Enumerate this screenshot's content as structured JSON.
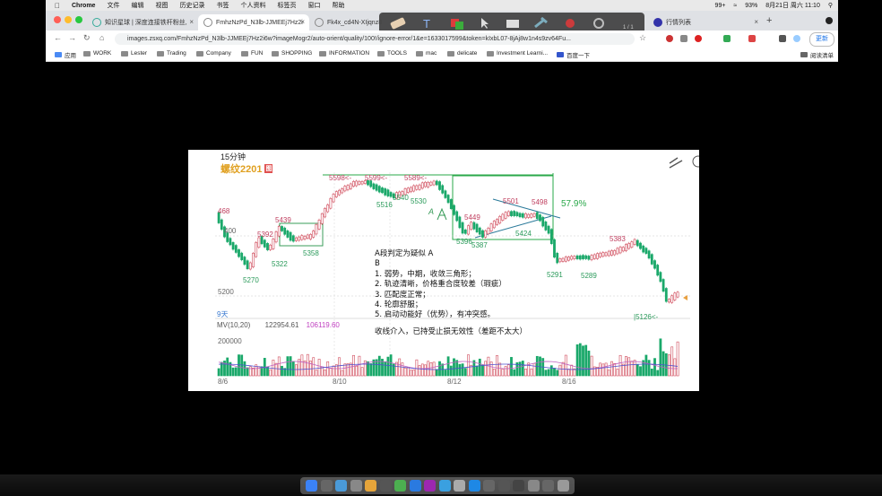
{
  "menubar": {
    "items": [
      "Chrome",
      "文件",
      "编辑",
      "视图",
      "历史记录",
      "书签",
      "个人资料",
      "标签页",
      "窗口",
      "帮助"
    ],
    "status": {
      "battery": "93%",
      "date": "8月21日 周六 11:10",
      "badge": "99+"
    }
  },
  "tabs": [
    {
      "title": "知识星球 | 深度连接铁杆粉丝,"
    },
    {
      "title": "FmhzNzPd_N3lb-JJMEEj7Hz2i"
    },
    {
      "title": "Fk4x_cd4N-XIjqnz8"
    },
    {
      "title": "行情列表"
    }
  ],
  "annotation_toolbar": {
    "page": "1 / 1"
  },
  "address": {
    "url": "images.zsxq.com/FmhzNzPd_N3lb-JJMEEj7Hz2i6w?imageMogr2/auto-orient/quality/100!/ignore-error/1&e=1633017599&token=kIxbL07-8jAj8w1n4s9zv64Fu..."
  },
  "update_button": "更新",
  "bookmarks": [
    "应用",
    "WORK",
    "Lester",
    "Trading",
    "Company",
    "FUN",
    "SHOPPING",
    "INFORMATION",
    "TOOLS",
    "mac",
    "delicate",
    "Investment Learni...",
    "百度一下",
    "阅读清单"
  ],
  "chart": {
    "timeframe": "15分钟",
    "symbol": "螺纹2201",
    "symbol_badge": "图",
    "interval_label": "9天",
    "volume_indicator": "MV(10,20)",
    "mv10": "122954.61",
    "mv20": "106119.60",
    "ylabels": [
      "400",
      "5200"
    ],
    "volume_axis": "200000",
    "date_labels": [
      "8/6",
      "8/10",
      "8/12",
      "8/16"
    ],
    "price_labels": [
      "468",
      "5392",
      "5439",
      "5322",
      "5358",
      "5270",
      "5598<-",
      "5599<-",
      "5589<-",
      "5516",
      "5540",
      "5530",
      "5449",
      "5501",
      "5498",
      "5396",
      "5387",
      "5424",
      "5291",
      "5383",
      "5289",
      "|5126<-"
    ],
    "pct_label": "57.9%",
    "handwritten_marker": "A",
    "notes": [
      "A段判定为疑似 A",
      "B",
      "1. 弱势，中期，收敛三角形；",
      "2. 轨迹清晰，价格重合度较差（瑕疵）",
      "3. 匹配度正常；",
      "4. 轮廓舒服；",
      "5. 启动动能好（优势），有冲突感。",
      "收线介入，已持受止损无效性（差距不太大）"
    ]
  },
  "chart_data": {
    "type": "candlestick",
    "title": "螺纹2201",
    "subtitle": "15分钟",
    "x": [
      "8/6",
      "8/10",
      "8/12",
      "8/16"
    ],
    "ylim": [
      5100,
      5620
    ],
    "annotated_prices": [
      468,
      5392,
      5439,
      5322,
      5358,
      5270,
      5598,
      5599,
      5589,
      5516,
      5540,
      5530,
      5449,
      5501,
      5498,
      5396,
      5387,
      5424,
      5291,
      5383,
      5289,
      5126
    ],
    "volume": {
      "indicator": "MV(10,20)",
      "mv10": 122954.61,
      "mv20": 106119.6,
      "axis_tick": 200000
    }
  },
  "colors": {
    "up": "#d04a5a",
    "down": "#1aa86a",
    "label_up": "#c04060",
    "label_down": "#2a9a5a",
    "box": "#2aa84a"
  }
}
